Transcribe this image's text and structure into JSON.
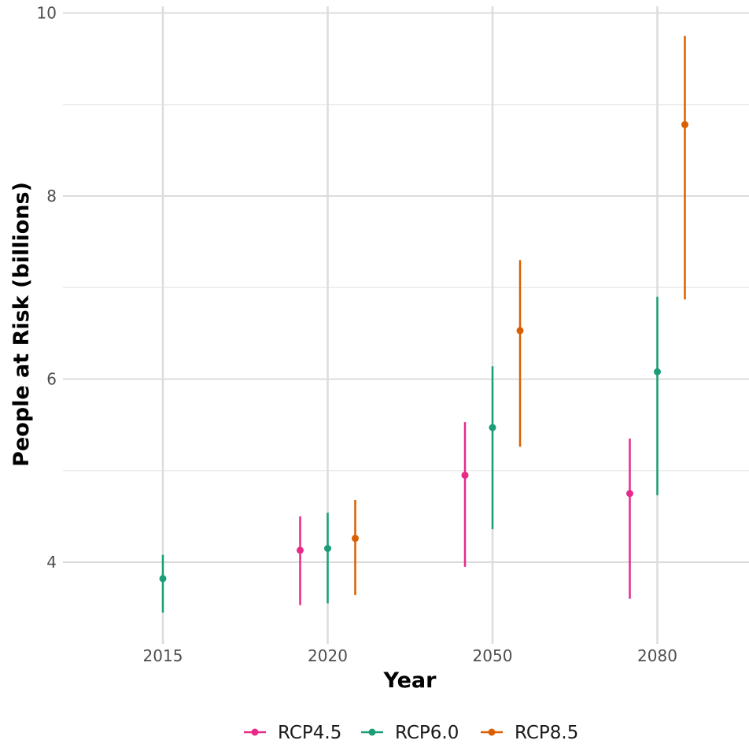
{
  "chart_data": {
    "type": "scatter",
    "subtype": "point-range",
    "xlabel": "Year",
    "ylabel": "People at Risk (billions)",
    "ylim": [
      3.1,
      10.05
    ],
    "yticks": [
      4,
      6,
      8,
      10
    ],
    "categories": [
      "2015",
      "2020",
      "2050",
      "2080"
    ],
    "grid": true,
    "legend_position": "bottom",
    "series": [
      {
        "name": "RCP4.5",
        "color": "#e7298a",
        "points": [
          {
            "x": "2020",
            "y": 4.13,
            "low": 3.53,
            "high": 4.5
          },
          {
            "x": "2050",
            "y": 4.95,
            "low": 3.95,
            "high": 5.53
          },
          {
            "x": "2080",
            "y": 4.75,
            "low": 3.6,
            "high": 5.35
          }
        ]
      },
      {
        "name": "RCP6.0",
        "color": "#1b9e77",
        "points": [
          {
            "x": "2015",
            "y": 3.82,
            "low": 3.45,
            "high": 4.08
          },
          {
            "x": "2020",
            "y": 4.15,
            "low": 3.55,
            "high": 4.54
          },
          {
            "x": "2050",
            "y": 5.47,
            "low": 4.36,
            "high": 6.14
          },
          {
            "x": "2080",
            "y": 6.08,
            "low": 4.73,
            "high": 6.9
          }
        ]
      },
      {
        "name": "RCP8.5",
        "color": "#d95f02",
        "points": [
          {
            "x": "2020",
            "y": 4.26,
            "low": 3.64,
            "high": 4.68
          },
          {
            "x": "2050",
            "y": 6.53,
            "low": 5.26,
            "high": 7.3
          },
          {
            "x": "2080",
            "y": 8.78,
            "low": 6.87,
            "high": 9.75
          }
        ]
      }
    ]
  }
}
